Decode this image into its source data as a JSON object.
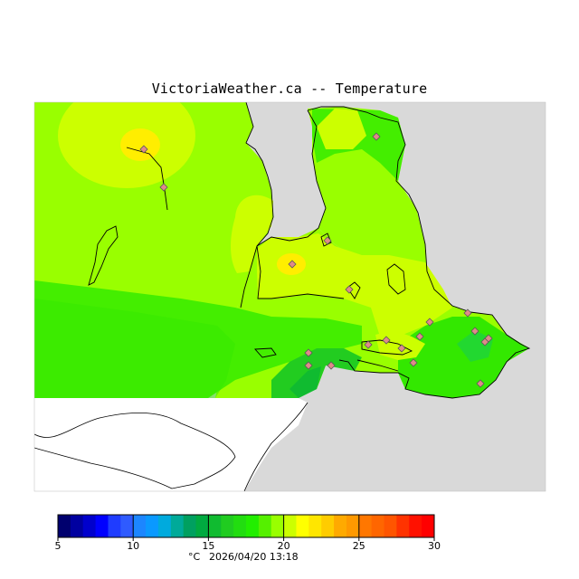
{
  "header": {
    "title": "VictoriaWeather.ca -- Temperature"
  },
  "legend": {
    "unit": "°C",
    "timestamp": "2026/04/20 13:18",
    "tick_labels": [
      "5",
      "10",
      "15",
      "20",
      "25",
      "30"
    ],
    "min": 5,
    "max": 30,
    "colors": [
      "#00006e",
      "#0000a0",
      "#0000cd",
      "#0000ff",
      "#1f3cff",
      "#2f5bff",
      "#1c86ff",
      "#0a99ff",
      "#00aadd",
      "#00aa99",
      "#00a060",
      "#00aa40",
      "#10bb30",
      "#20cc20",
      "#22dd10",
      "#22ee00",
      "#55f000",
      "#99ff00",
      "#ccff00",
      "#ffff00",
      "#ffe600",
      "#ffcc00",
      "#ffaa00",
      "#ff9900",
      "#ff7700",
      "#ff6600",
      "#ff5500",
      "#ff3300",
      "#ff1100",
      "#ff0000"
    ]
  },
  "map": {
    "stations": [
      {
        "temp": 21
      },
      {
        "temp": 19
      },
      {
        "temp": 17
      },
      {
        "temp": 22
      },
      {
        "temp": 22
      },
      {
        "temp": 20
      },
      {
        "temp": 21
      },
      {
        "temp": 21
      },
      {
        "temp": 20
      },
      {
        "temp": 19
      },
      {
        "temp": 19
      },
      {
        "temp": 18
      },
      {
        "temp": 17
      },
      {
        "temp": 17
      },
      {
        "temp": 19
      },
      {
        "temp": 18
      },
      {
        "temp": 17
      },
      {
        "temp": 19
      },
      {
        "temp": 18
      },
      {
        "temp": 18
      }
    ]
  }
}
